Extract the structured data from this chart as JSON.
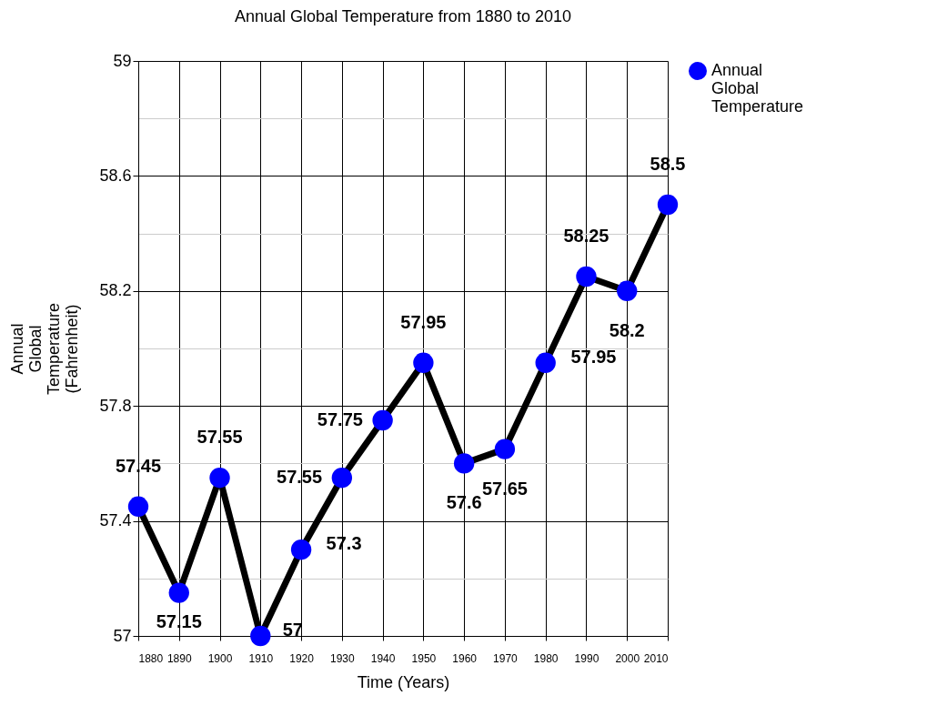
{
  "chart_data": {
    "type": "line",
    "title": "Annual Global Temperature from 1880 to 2010",
    "xlabel": "Time (Years)",
    "ylabel": "Annual Global Temperature (Fahrenheit)",
    "x": [
      1880,
      1890,
      1900,
      1910,
      1920,
      1930,
      1940,
      1950,
      1960,
      1970,
      1980,
      1990,
      2000,
      2010
    ],
    "series": [
      {
        "name": "Annual Global Temperature",
        "color": "#0000ff",
        "values": [
          57.45,
          57.15,
          57.55,
          57,
          57.3,
          57.55,
          57.75,
          57.95,
          57.6,
          57.65,
          57.95,
          58.25,
          58.2,
          58.5
        ]
      }
    ],
    "xlim": [
      1880,
      2010
    ],
    "xticks": [
      1880,
      1890,
      1900,
      1910,
      1920,
      1930,
      1940,
      1950,
      1960,
      1970,
      1980,
      1990,
      2000,
      2010
    ],
    "ylim": [
      57,
      59
    ],
    "yticks": [
      57,
      {
        "value": 57.2,
        "label": null
      },
      57.4,
      {
        "value": 57.6,
        "label": null
      },
      57.8,
      {
        "value": 58,
        "label": null
      },
      58.2,
      {
        "value": 58.4,
        "label": null
      },
      58.6,
      {
        "value": 58.8,
        "label": null
      },
      59
    ],
    "grid": true,
    "legend": "right",
    "marker": "circle",
    "line_style": "solid",
    "data_labels": true
  }
}
